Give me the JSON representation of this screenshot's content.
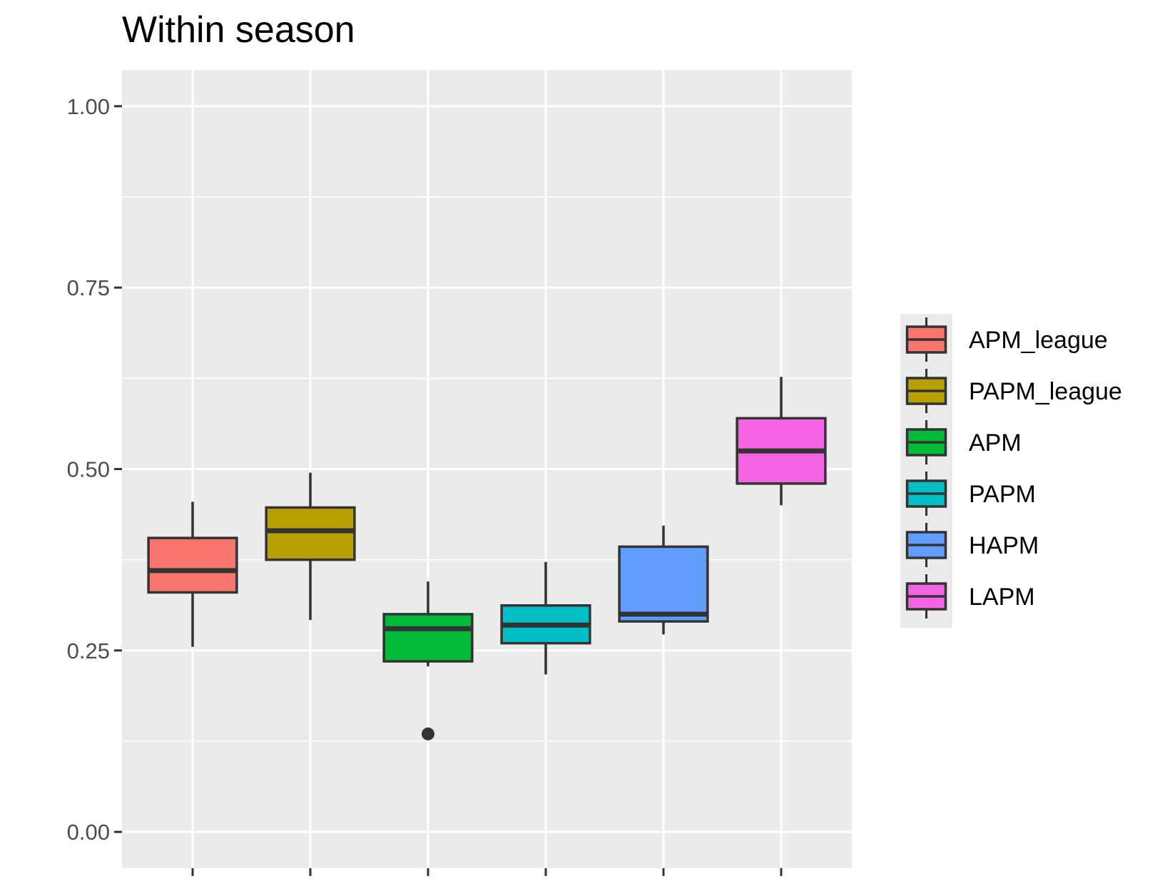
{
  "chart_data": {
    "type": "boxplot",
    "title": "Within season",
    "xlabel": "",
    "ylabel": "",
    "ylim": [
      -0.05,
      1.05
    ],
    "y_ticks": [
      0.0,
      0.25,
      0.5,
      0.75,
      1.0
    ],
    "y_tick_labels": [
      "0.00",
      "0.25",
      "0.50",
      "0.75",
      "1.00"
    ],
    "x_tick_labels": [
      "",
      "",
      "",
      "",
      "",
      ""
    ],
    "legend_position": "right",
    "series": [
      {
        "name": "APM_league",
        "color": "#F8766D",
        "whisker_low": 0.255,
        "q1": 0.33,
        "median": 0.36,
        "q3": 0.405,
        "whisker_high": 0.455,
        "outliers": []
      },
      {
        "name": "PAPM_league",
        "color": "#B79F00",
        "whisker_low": 0.292,
        "q1": 0.375,
        "median": 0.415,
        "q3": 0.447,
        "whisker_high": 0.495,
        "outliers": []
      },
      {
        "name": "APM",
        "color": "#00BA38",
        "whisker_low": 0.228,
        "q1": 0.235,
        "median": 0.28,
        "q3": 0.3,
        "whisker_high": 0.345,
        "outliers": [
          0.135
        ]
      },
      {
        "name": "PAPM",
        "color": "#00BFC4",
        "whisker_low": 0.217,
        "q1": 0.26,
        "median": 0.285,
        "q3": 0.312,
        "whisker_high": 0.372,
        "outliers": []
      },
      {
        "name": "HAPM",
        "color": "#619CFF",
        "whisker_low": 0.272,
        "q1": 0.29,
        "median": 0.3,
        "q3": 0.393,
        "whisker_high": 0.422,
        "outliers": []
      },
      {
        "name": "LAPM",
        "color": "#F564E3",
        "whisker_low": 0.45,
        "q1": 0.48,
        "median": 0.525,
        "q3": 0.57,
        "whisker_high": 0.627,
        "outliers": []
      }
    ]
  }
}
